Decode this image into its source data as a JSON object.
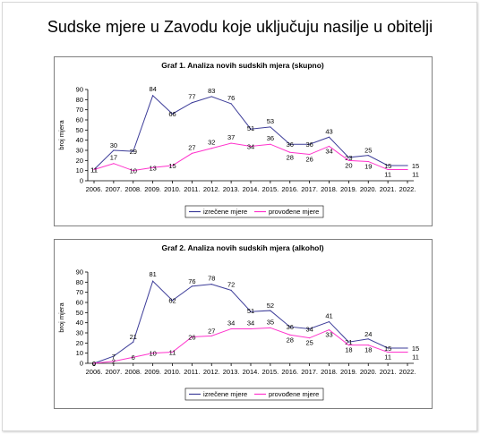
{
  "title": "Sudske mjere u Zavodu koje uključuju nasilje u obitelji",
  "chart_data": [
    {
      "type": "line",
      "title": "Graf 1. Analiza novih sudskih mjera (skupno)",
      "ylabel": "broj mjera",
      "xlabel": "",
      "ylim": [
        0,
        90
      ],
      "yticks": [
        0,
        10,
        20,
        30,
        40,
        50,
        60,
        70,
        80,
        90
      ],
      "categories": [
        "2006.",
        "2007.",
        "2008.",
        "2009.",
        "2010.",
        "2011.",
        "2012.",
        "2013.",
        "2014.",
        "2015.",
        "2016.",
        "2017.",
        "2018.",
        "2019.",
        "2020.",
        "2021.",
        "2022."
      ],
      "grid": false,
      "legend_position": "bottom",
      "series": [
        {
          "name": "izrečene mjere",
          "color": "#3d3d99",
          "values": [
            11,
            30,
            29,
            84,
            66,
            77,
            83,
            76,
            51,
            53,
            36,
            36,
            43,
            23,
            25,
            15,
            15
          ]
        },
        {
          "name": "provođene mjere",
          "color": "#ff33cc",
          "values": [
            11,
            17,
            10,
            13,
            15,
            27,
            32,
            37,
            34,
            36,
            28,
            26,
            34,
            20,
            19,
            11,
            11
          ]
        }
      ]
    },
    {
      "type": "line",
      "title": "Graf 2. Analiza novih sudskih mjera (alkohol)",
      "ylabel": "broj mjera",
      "xlabel": "",
      "ylim": [
        0,
        90
      ],
      "yticks": [
        0,
        10,
        20,
        30,
        40,
        50,
        60,
        70,
        80,
        90
      ],
      "categories": [
        "2006.",
        "2007.",
        "2008.",
        "2009.",
        "2010.",
        "2011.",
        "2012.",
        "2013.",
        "2014.",
        "2015.",
        "2016.",
        "2017.",
        "2018.",
        "2019.",
        "2020.",
        "2021.",
        "2022."
      ],
      "grid": false,
      "legend_position": "bottom",
      "series": [
        {
          "name": "izrečene mjere",
          "color": "#3d3d99",
          "values": [
            0,
            7,
            21,
            81,
            62,
            76,
            78,
            72,
            51,
            52,
            36,
            34,
            41,
            21,
            24,
            15,
            15
          ]
        },
        {
          "name": "provođene mjere",
          "color": "#ff33cc",
          "values": [
            0,
            2,
            6,
            10,
            11,
            26,
            27,
            34,
            34,
            35,
            28,
            25,
            33,
            18,
            18,
            11,
            11
          ]
        }
      ]
    }
  ]
}
